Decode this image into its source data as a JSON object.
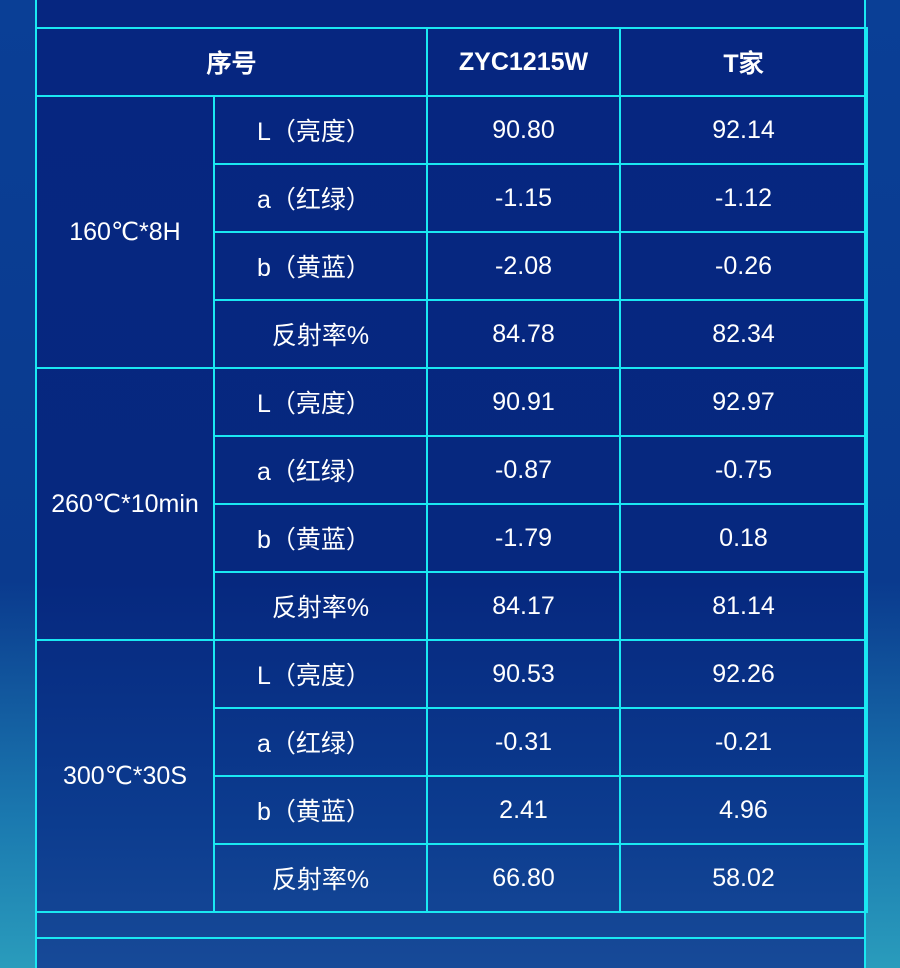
{
  "header": {
    "col0": "序号",
    "col1": "ZYC1215W",
    "col2": "T家"
  },
  "groups": [
    {
      "condition": "160℃*8H",
      "rows": [
        {
          "metric": "L（亮度）",
          "zyc": "90.80",
          "t": "92.14"
        },
        {
          "metric": "a（红绿）",
          "zyc": "-1.15",
          "t": "-1.12"
        },
        {
          "metric": "b（黄蓝）",
          "zyc": "-2.08",
          "t": "-0.26"
        },
        {
          "metric": "反射率%",
          "zyc": "84.78",
          "t": "82.34"
        }
      ]
    },
    {
      "condition": "260℃*10min",
      "rows": [
        {
          "metric": "L（亮度）",
          "zyc": "90.91",
          "t": "92.97"
        },
        {
          "metric": "a（红绿）",
          "zyc": "-0.87",
          "t": "-0.75"
        },
        {
          "metric": "b（黄蓝）",
          "zyc": "-1.79",
          "t": "0.18"
        },
        {
          "metric": "反射率%",
          "zyc": "84.17",
          "t": "81.14"
        }
      ]
    },
    {
      "condition": "300℃*30S",
      "rows": [
        {
          "metric": "L（亮度）",
          "zyc": "90.53",
          "t": "92.26"
        },
        {
          "metric": "a（红绿）",
          "zyc": "-0.31",
          "t": "-0.21"
        },
        {
          "metric": "b（黄蓝）",
          "zyc": "2.41",
          "t": "4.96"
        },
        {
          "metric": "反射率%",
          "zyc": "66.80",
          "t": "58.02"
        }
      ]
    }
  ],
  "colors": {
    "line": "#1ae8f2",
    "background": "#062680",
    "text": "#ffffff"
  }
}
